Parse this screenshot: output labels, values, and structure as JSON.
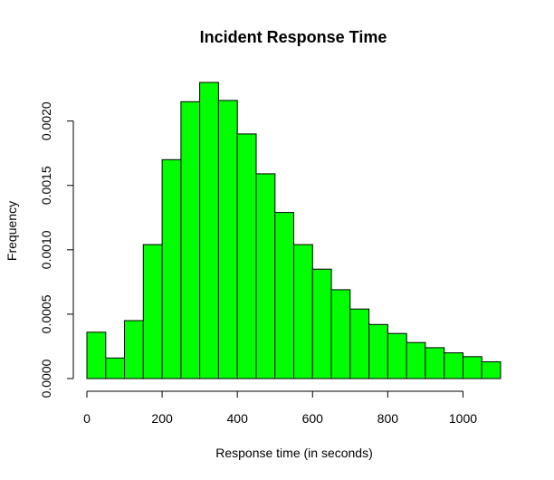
{
  "chart_data": {
    "type": "bar",
    "title": "Incident Response Time",
    "xlabel": "Response time (in seconds)",
    "ylabel": "Frequency",
    "bin_width": 50,
    "bin_starts": [
      0,
      50,
      100,
      150,
      200,
      250,
      300,
      350,
      400,
      450,
      500,
      550,
      600,
      650,
      700,
      750,
      800,
      850,
      900,
      950,
      1000,
      1050
    ],
    "values": [
      0.00036,
      0.00016,
      0.00045,
      0.00104,
      0.0017,
      0.00215,
      0.0023,
      0.00216,
      0.0019,
      0.00159,
      0.00129,
      0.00104,
      0.00085,
      0.00069,
      0.00054,
      0.00042,
      0.00035,
      0.00028,
      0.00024,
      0.0002,
      0.00017,
      0.00013
    ],
    "xlim": [
      0,
      1100
    ],
    "ylim": [
      0,
      0.0023
    ],
    "x_ticks": [
      0,
      200,
      400,
      600,
      800,
      1000
    ],
    "x_tick_labels": [
      "0",
      "200",
      "400",
      "600",
      "800",
      "1000"
    ],
    "y_ticks": [
      0,
      0.0005,
      0.001,
      0.0015,
      0.002
    ],
    "y_tick_labels": [
      "0.0000",
      "0.0005",
      "0.0010",
      "0.0015",
      "0.0020"
    ],
    "bar_color": "#00ff00",
    "grid": false,
    "legend": "none"
  }
}
